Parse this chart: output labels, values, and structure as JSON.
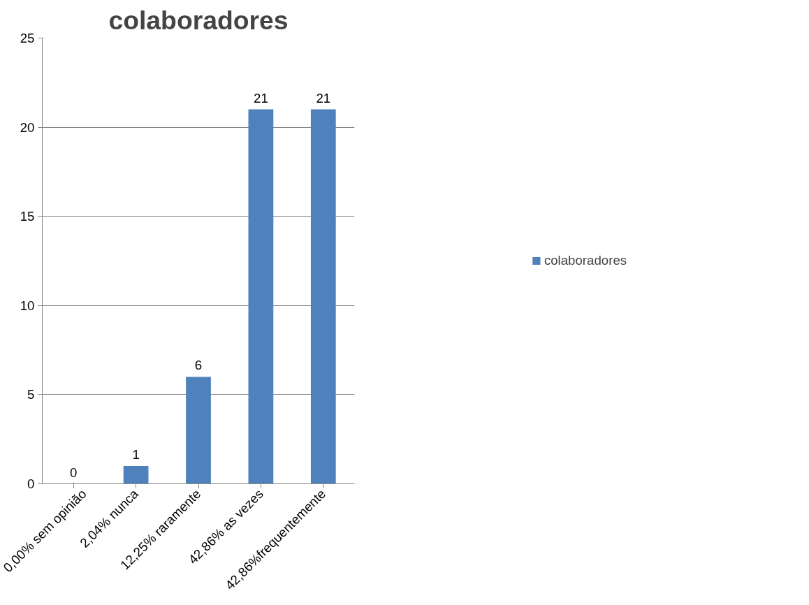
{
  "chart_data": {
    "type": "bar",
    "title": "colaboradores",
    "categories": [
      "0,00% sem opinião",
      "2,04% nunca",
      "12,25% raramente",
      "42,86% as vezes",
      "42,86%frequentemente"
    ],
    "series": [
      {
        "name": "colaboradores",
        "color": "#4f81bd",
        "values": [
          0,
          1,
          6,
          21,
          21
        ]
      }
    ],
    "ylim": [
      0,
      25
    ],
    "yticks": [
      0,
      5,
      10,
      15,
      20,
      25
    ],
    "grid": "y",
    "legend": "right",
    "data_labels": true
  }
}
